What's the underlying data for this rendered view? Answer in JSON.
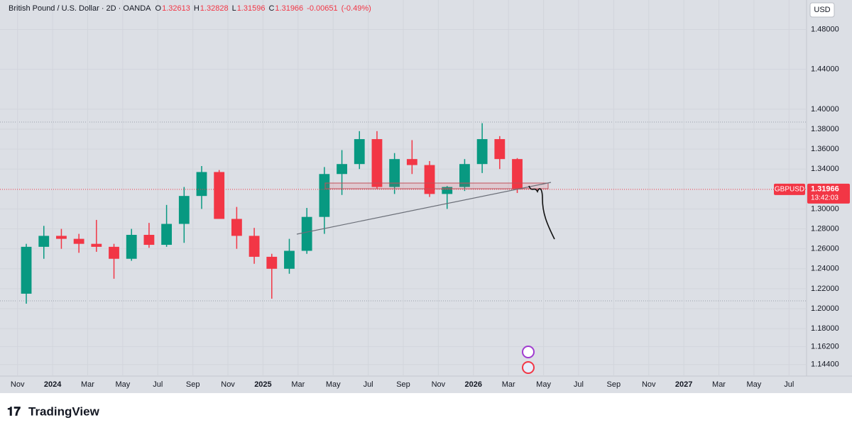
{
  "chart_data": {
    "type": "candlestick",
    "title": "British Pound / U.S. Dollar · 2D · OANDA",
    "legend": [
      {
        "label": "O",
        "value": 1.32613
      },
      {
        "label": "H",
        "value": 1.32828
      },
      {
        "label": "L",
        "value": 1.31596
      },
      {
        "label": "C",
        "value": 1.31966
      }
    ],
    "change": -0.00651,
    "change_percent": {
      "value": -0.49,
      "label": "(-0.49%)"
    },
    "currency": "USD",
    "symbol": "GBPUSD",
    "last_price": 1.31966,
    "countdown": "13:42:03",
    "brand": "TradingView",
    "up_color": "#089981",
    "down_color": "#f23645",
    "x": [
      "2023-11",
      "2023-12",
      "2024-01",
      "2024-02",
      "2024-03",
      "2024-04",
      "2024-05",
      "2024-06",
      "2024-07",
      "2024-08",
      "2024-09",
      "2024-10",
      "2024-11",
      "2024-12",
      "2025-01",
      "2025-02",
      "2025-03",
      "2025-04",
      "2025-05",
      "2025-06",
      "2025-07",
      "2025-08",
      "2025-09",
      "2025-10",
      "2025-11",
      "2025-12",
      "2026-01",
      "2026-02",
      "2026-03"
    ],
    "open": [
      1.215,
      1.262,
      1.273,
      1.27,
      1.265,
      1.262,
      1.25,
      1.274,
      1.264,
      1.285,
      1.313,
      1.337,
      1.29,
      1.273,
      1.252,
      1.24,
      1.258,
      1.292,
      1.335,
      1.345,
      1.37,
      1.322,
      1.35,
      1.344,
      1.315,
      1.322,
      1.345,
      1.37,
      1.35
    ],
    "high": [
      1.265,
      1.283,
      1.28,
      1.275,
      1.289,
      1.265,
      1.28,
      1.286,
      1.304,
      1.322,
      1.343,
      1.339,
      1.302,
      1.281,
      1.255,
      1.27,
      1.301,
      1.342,
      1.359,
      1.378,
      1.378,
      1.356,
      1.369,
      1.348,
      1.323,
      1.35,
      1.386,
      1.373,
      1.351
    ],
    "low": [
      1.205,
      1.25,
      1.26,
      1.256,
      1.257,
      1.23,
      1.248,
      1.261,
      1.262,
      1.266,
      1.3,
      1.29,
      1.26,
      1.245,
      1.21,
      1.235,
      1.255,
      1.275,
      1.314,
      1.34,
      1.32,
      1.315,
      1.335,
      1.312,
      1.3,
      1.318,
      1.336,
      1.34,
      1.316
    ],
    "close": [
      1.262,
      1.273,
      1.27,
      1.265,
      1.262,
      1.25,
      1.274,
      1.264,
      1.285,
      1.313,
      1.337,
      1.29,
      1.273,
      1.252,
      1.24,
      1.258,
      1.292,
      1.335,
      1.345,
      1.37,
      1.322,
      1.35,
      1.344,
      1.315,
      1.322,
      1.345,
      1.37,
      1.35,
      1.31966
    ],
    "xlim": [
      "2023-10",
      "2027-08"
    ],
    "xticks": [
      {
        "value": "2023-11",
        "label": "Nov"
      },
      {
        "value": "2024-01",
        "label": "2024"
      },
      {
        "value": "2024-03",
        "label": "Mar"
      },
      {
        "value": "2024-05",
        "label": "May"
      },
      {
        "value": "2024-07",
        "label": "Jul"
      },
      {
        "value": "2024-09",
        "label": "Sep"
      },
      {
        "value": "2024-11",
        "label": "Nov"
      },
      {
        "value": "2025-01",
        "label": "2025"
      },
      {
        "value": "2025-03",
        "label": "Mar"
      },
      {
        "value": "2025-05",
        "label": "May"
      },
      {
        "value": "2025-07",
        "label": "Jul"
      },
      {
        "value": "2025-09",
        "label": "Sep"
      },
      {
        "value": "2025-11",
        "label": "Nov"
      },
      {
        "value": "2026-01",
        "label": "2026"
      },
      {
        "value": "2026-03",
        "label": "Mar"
      },
      {
        "value": "2026-05",
        "label": "May"
      },
      {
        "value": "2026-07",
        "label": "Jul"
      },
      {
        "value": "2026-09",
        "label": "Sep"
      },
      {
        "value": "2026-11",
        "label": "Nov"
      },
      {
        "value": "2027-01",
        "label": "2027"
      },
      {
        "value": "2027-03",
        "label": "Mar"
      },
      {
        "value": "2027-05",
        "label": "May"
      },
      {
        "value": "2027-07",
        "label": "Jul"
      }
    ],
    "ylim": [
      1.1324,
      1.5095
    ],
    "yticks": [
      {
        "value": 1.48,
        "label": "1.48000"
      },
      {
        "value": 1.44,
        "label": "1.44000"
      },
      {
        "value": 1.4,
        "label": "1.40000"
      },
      {
        "value": 1.38,
        "label": "1.38000"
      },
      {
        "value": 1.36,
        "label": "1.36000"
      },
      {
        "value": 1.34,
        "label": "1.34000"
      },
      {
        "value": 1.3,
        "label": "1.30000"
      },
      {
        "value": 1.28,
        "label": "1.28000"
      },
      {
        "value": 1.26,
        "label": "1.26000"
      },
      {
        "value": 1.24,
        "label": "1.24000"
      },
      {
        "value": 1.22,
        "label": "1.22000"
      },
      {
        "value": 1.2,
        "label": "1.20000"
      },
      {
        "value": 1.18,
        "label": "1.18000"
      },
      {
        "value": 1.162,
        "label": "1.16200"
      },
      {
        "value": 1.144,
        "label": "1.14400"
      }
    ]
  }
}
